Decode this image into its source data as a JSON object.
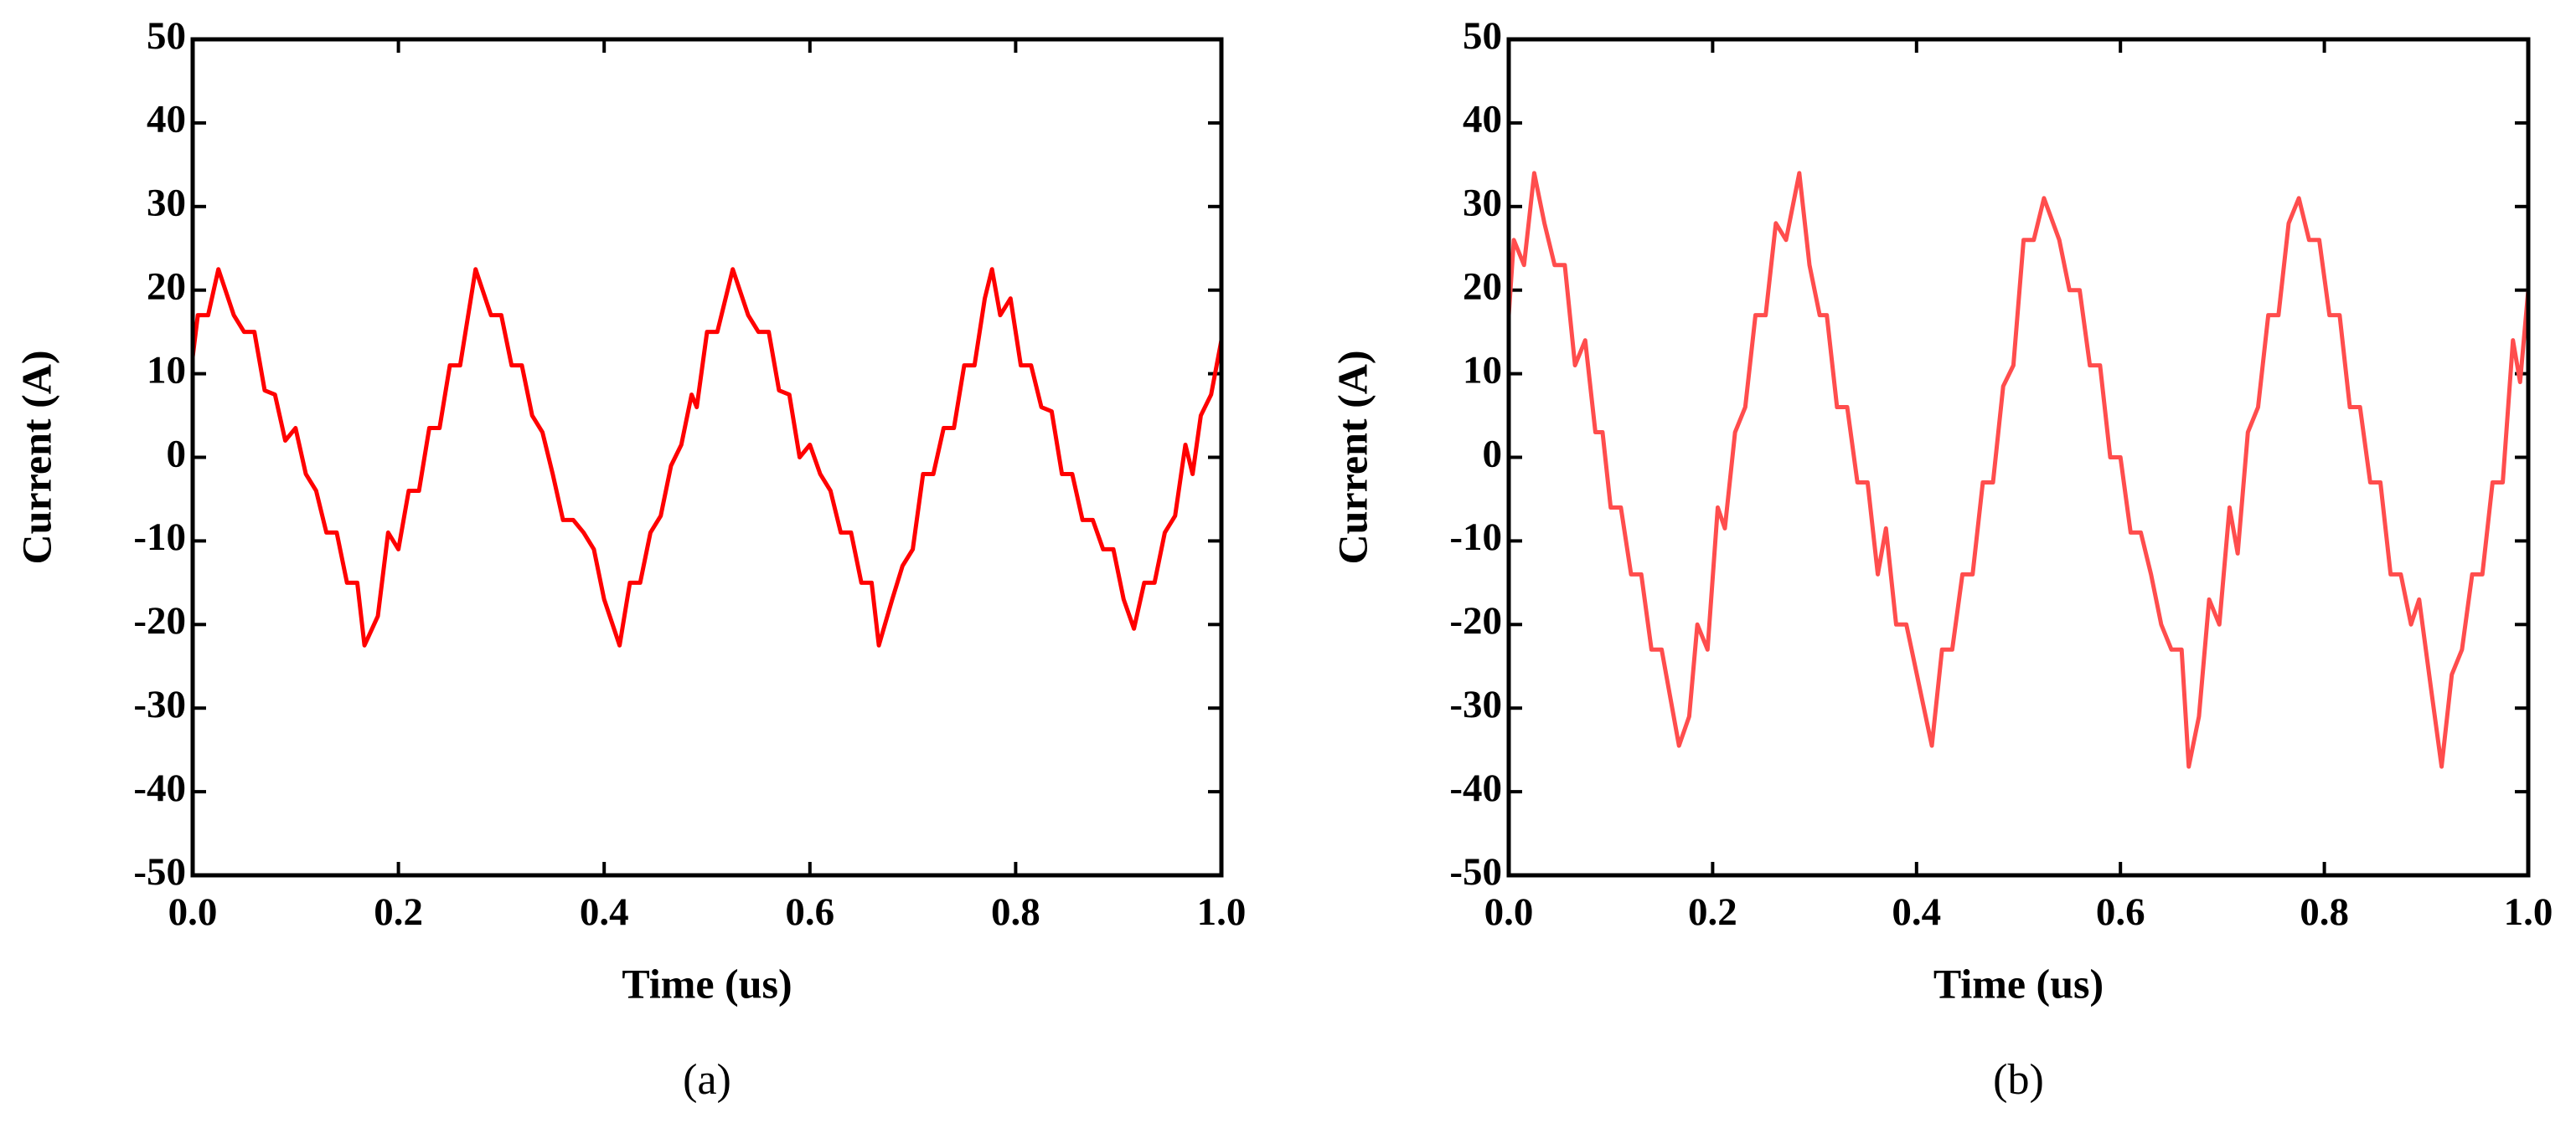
{
  "chart_data": [
    {
      "type": "line",
      "caption": "(a)",
      "x_label": "Time (us)",
      "y_label": "Current (A)",
      "xlim": [
        0,
        1
      ],
      "ylim": [
        -50,
        50
      ],
      "xticks": [
        {
          "value": 0,
          "label": "0.0"
        },
        0.2,
        0.4,
        0.6,
        0.8,
        {
          "value": 1,
          "label": "1.0"
        }
      ],
      "yticks": [
        -50,
        -40,
        -30,
        -20,
        -10,
        0,
        10,
        20,
        30,
        40,
        50
      ],
      "x": [
        0,
        0.005,
        0.015,
        0.025,
        0.04,
        0.05,
        0.06,
        0.07,
        0.08,
        0.09,
        0.1,
        0.11,
        0.12,
        0.13,
        0.14,
        0.15,
        0.16,
        0.167,
        0.18,
        0.19,
        0.2,
        0.21,
        0.22,
        0.23,
        0.24,
        0.25,
        0.26,
        0.275,
        0.29,
        0.3,
        0.31,
        0.32,
        0.33,
        0.34,
        0.35,
        0.36,
        0.37,
        0.38,
        0.39,
        0.4,
        0.415,
        0.425,
        0.435,
        0.445,
        0.455,
        0.465,
        0.475,
        0.485,
        0.49,
        0.5,
        0.51,
        0.525,
        0.54,
        0.55,
        0.56,
        0.57,
        0.58,
        0.59,
        0.6,
        0.61,
        0.62,
        0.63,
        0.64,
        0.65,
        0.66,
        0.667,
        0.68,
        0.69,
        0.7,
        0.71,
        0.72,
        0.73,
        0.74,
        0.75,
        0.76,
        0.77,
        0.777,
        0.785,
        0.795,
        0.805,
        0.815,
        0.825,
        0.835,
        0.845,
        0.855,
        0.865,
        0.875,
        0.885,
        0.895,
        0.905,
        0.915,
        0.925,
        0.935,
        0.945,
        0.955,
        0.965,
        0.972,
        0.98,
        0.99,
        1.0
      ],
      "series": [
        {
          "color": "#ff0000",
          "values": [
            12,
            17,
            17,
            22.5,
            17,
            15,
            15,
            8,
            7.5,
            2,
            3.5,
            -2,
            -4,
            -9,
            -9,
            -15,
            -15,
            -22.5,
            -19,
            -9,
            -11,
            -4,
            -4,
            3.5,
            3.5,
            11,
            11,
            22.5,
            17,
            17,
            11,
            11,
            5,
            3,
            -2,
            -7.5,
            -7.5,
            -9,
            -11,
            -17,
            -22.5,
            -15,
            -15,
            -9,
            -7,
            -1,
            1.5,
            7.5,
            6,
            15,
            15,
            22.5,
            17,
            15,
            15,
            8,
            7.5,
            0,
            1.5,
            -2,
            -4,
            -9,
            -9,
            -15,
            -15,
            -22.5,
            -17,
            -13,
            -11,
            -2,
            -2,
            3.5,
            3.5,
            11,
            11,
            19,
            22.5,
            17,
            19,
            11,
            11,
            6,
            5.5,
            -2,
            -2,
            -7.5,
            -7.5,
            -11,
            -11,
            -17,
            -20.5,
            -15,
            -15,
            -9,
            -7,
            1.5,
            -2,
            5,
            7.5,
            14
          ]
        }
      ]
    },
    {
      "type": "line",
      "caption": "(b)",
      "x_label": "Time (us)",
      "y_label": "Current (A)",
      "xlim": [
        0,
        1
      ],
      "ylim": [
        -50,
        50
      ],
      "xticks": [
        {
          "value": 0,
          "label": "0.0"
        },
        0.2,
        0.4,
        0.6,
        0.8,
        {
          "value": 1,
          "label": "1.0"
        }
      ],
      "yticks": [
        -50,
        -40,
        -30,
        -20,
        -10,
        0,
        10,
        20,
        30,
        40,
        50
      ],
      "x": [
        0,
        0.005,
        0.015,
        0.025,
        0.035,
        0.045,
        0.055,
        0.065,
        0.075,
        0.085,
        0.092,
        0.1,
        0.11,
        0.12,
        0.13,
        0.14,
        0.15,
        0.167,
        0.177,
        0.185,
        0.195,
        0.205,
        0.212,
        0.222,
        0.232,
        0.242,
        0.252,
        0.262,
        0.272,
        0.285,
        0.295,
        0.305,
        0.312,
        0.322,
        0.332,
        0.342,
        0.352,
        0.362,
        0.37,
        0.38,
        0.39,
        0.415,
        0.425,
        0.435,
        0.445,
        0.455,
        0.465,
        0.475,
        0.485,
        0.495,
        0.505,
        0.515,
        0.525,
        0.54,
        0.55,
        0.56,
        0.57,
        0.58,
        0.59,
        0.6,
        0.61,
        0.62,
        0.63,
        0.64,
        0.65,
        0.66,
        0.667,
        0.677,
        0.687,
        0.697,
        0.707,
        0.715,
        0.725,
        0.735,
        0.745,
        0.755,
        0.765,
        0.775,
        0.785,
        0.795,
        0.805,
        0.815,
        0.825,
        0.835,
        0.845,
        0.855,
        0.865,
        0.875,
        0.885,
        0.893,
        0.905,
        0.915,
        0.925,
        0.935,
        0.945,
        0.955,
        0.965,
        0.975,
        0.985,
        0.992,
        1.0
      ],
      "series": [
        {
          "color": "#ff4d4d",
          "values": [
            17,
            26,
            23,
            34,
            28,
            23,
            23,
            11,
            14,
            3,
            3,
            -6,
            -6,
            -14,
            -14,
            -23,
            -23,
            -34.5,
            -31,
            -20,
            -23,
            -6,
            -8.5,
            3,
            6,
            17,
            17,
            28,
            26,
            34,
            23,
            17,
            17,
            6,
            6,
            -3,
            -3,
            -14,
            -8.5,
            -20,
            -20,
            -34.5,
            -23,
            -23,
            -14,
            -14,
            -3,
            -3,
            8.5,
            11,
            26,
            26,
            31,
            26,
            20,
            20,
            11,
            11,
            0,
            0,
            -9,
            -9,
            -14,
            -20,
            -23,
            -23,
            -37,
            -31,
            -17,
            -20,
            -6,
            -11.5,
            3,
            6,
            17,
            17,
            28,
            31,
            26,
            26,
            17,
            17,
            6,
            6,
            -3,
            -3,
            -14,
            -14,
            -20,
            -17,
            -28,
            -37,
            -26,
            -23,
            -14,
            -14,
            -3,
            -3,
            14,
            9,
            20
          ]
        }
      ]
    }
  ]
}
